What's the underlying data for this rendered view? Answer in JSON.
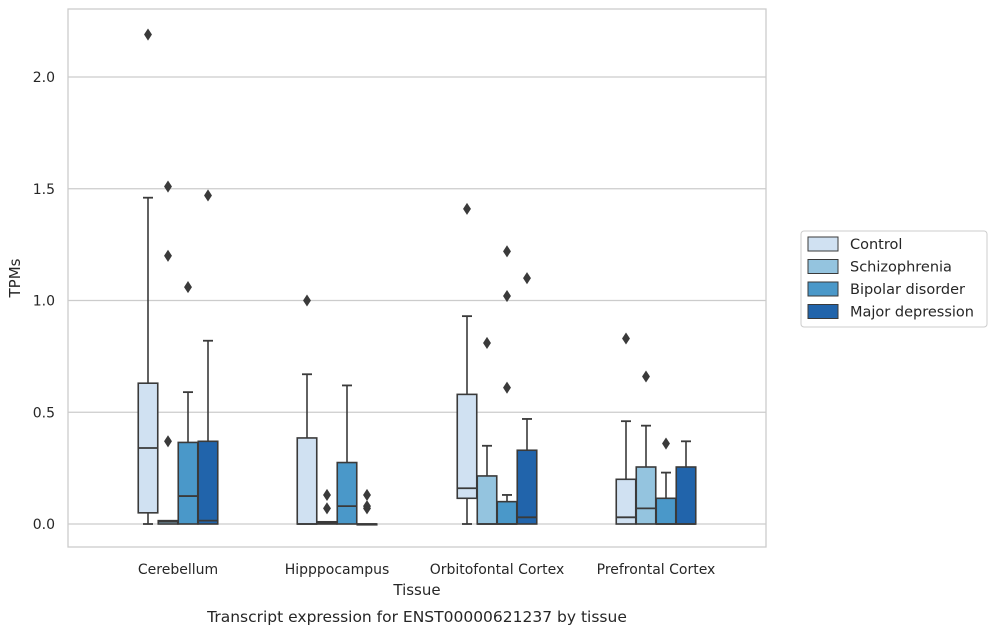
{
  "chart_data": {
    "type": "box",
    "xlabel": "Tissue",
    "ylabel": "TPMs",
    "caption": "Transcript expression for ENST00000621237 by tissue",
    "categories": [
      "Cerebellum",
      "Hipppocampus",
      "Orbitofontal Cortex",
      "Prefrontal Cortex"
    ],
    "y_ticks": [
      "0.0",
      "0.5",
      "1.0",
      "1.5",
      "2.0"
    ],
    "ylim": [
      -0.11,
      2.31
    ],
    "grid": true,
    "legend_position": "right",
    "colors": [
      "#d0e1f2",
      "#94c4df",
      "#4a98c9",
      "#2164ab"
    ],
    "series": [
      {
        "name": "Control",
        "boxes": [
          {
            "whislo": 0.0,
            "q1": 0.05,
            "med": 0.34,
            "q3": 0.63,
            "whishi": 1.46,
            "fliers": [
              2.19
            ]
          },
          {
            "whislo": 0.0,
            "q1": 0.0,
            "med": 0.0,
            "q3": 0.385,
            "whishi": 0.67,
            "fliers": [
              1.0
            ]
          },
          {
            "whislo": 0.0,
            "q1": 0.115,
            "med": 0.16,
            "q3": 0.58,
            "whishi": 0.93,
            "fliers": [
              1.41
            ]
          },
          {
            "whislo": 0.0,
            "q1": 0.0,
            "med": 0.03,
            "q3": 0.2,
            "whishi": 0.46,
            "fliers": [
              0.83
            ]
          }
        ]
      },
      {
        "name": "Schizophrenia",
        "boxes": [
          {
            "whislo": 0.0,
            "q1": 0.0,
            "med": 0.01,
            "q3": 0.015,
            "whishi": 0.015,
            "fliers": [
              0.37,
              1.2,
              1.51
            ]
          },
          {
            "whislo": 0.0,
            "q1": 0.0,
            "med": 0.005,
            "q3": 0.01,
            "whishi": 0.01,
            "fliers": [
              0.07,
              0.13
            ]
          },
          {
            "whislo": 0.0,
            "q1": 0.0,
            "med": 0.0,
            "q3": 0.215,
            "whishi": 0.35,
            "fliers": [
              0.81
            ]
          },
          {
            "whislo": 0.0,
            "q1": 0.0,
            "med": 0.07,
            "q3": 0.255,
            "whishi": 0.44,
            "fliers": [
              0.66
            ]
          }
        ]
      },
      {
        "name": "Bipolar disorder",
        "boxes": [
          {
            "whislo": 0.0,
            "q1": 0.0,
            "med": 0.125,
            "q3": 0.365,
            "whishi": 0.59,
            "fliers": [
              1.06
            ]
          },
          {
            "whislo": 0.0,
            "q1": 0.0,
            "med": 0.08,
            "q3": 0.275,
            "whishi": 0.62,
            "fliers": []
          },
          {
            "whislo": 0.0,
            "q1": 0.0,
            "med": 0.0,
            "q3": 0.1,
            "whishi": 0.13,
            "fliers": [
              0.61,
              1.02,
              1.22
            ]
          },
          {
            "whislo": 0.0,
            "q1": 0.0,
            "med": 0.0,
            "q3": 0.115,
            "whishi": 0.23,
            "fliers": [
              0.36
            ]
          }
        ]
      },
      {
        "name": "Major depression",
        "boxes": [
          {
            "whislo": 0.0,
            "q1": 0.0,
            "med": 0.015,
            "q3": 0.37,
            "whishi": 0.82,
            "fliers": [
              1.47
            ]
          },
          {
            "whislo": 0.0,
            "q1": 0.0,
            "med": 0.0,
            "q3": 0.0,
            "whishi": 0.0,
            "fliers": [
              0.07,
              0.08,
              0.13
            ]
          },
          {
            "whislo": 0.0,
            "q1": 0.0,
            "med": 0.03,
            "q3": 0.33,
            "whishi": 0.47,
            "fliers": [
              1.1
            ]
          },
          {
            "whislo": 0.0,
            "q1": 0.0,
            "med": 0.0,
            "q3": 0.255,
            "whishi": 0.37,
            "fliers": []
          }
        ]
      }
    ]
  }
}
